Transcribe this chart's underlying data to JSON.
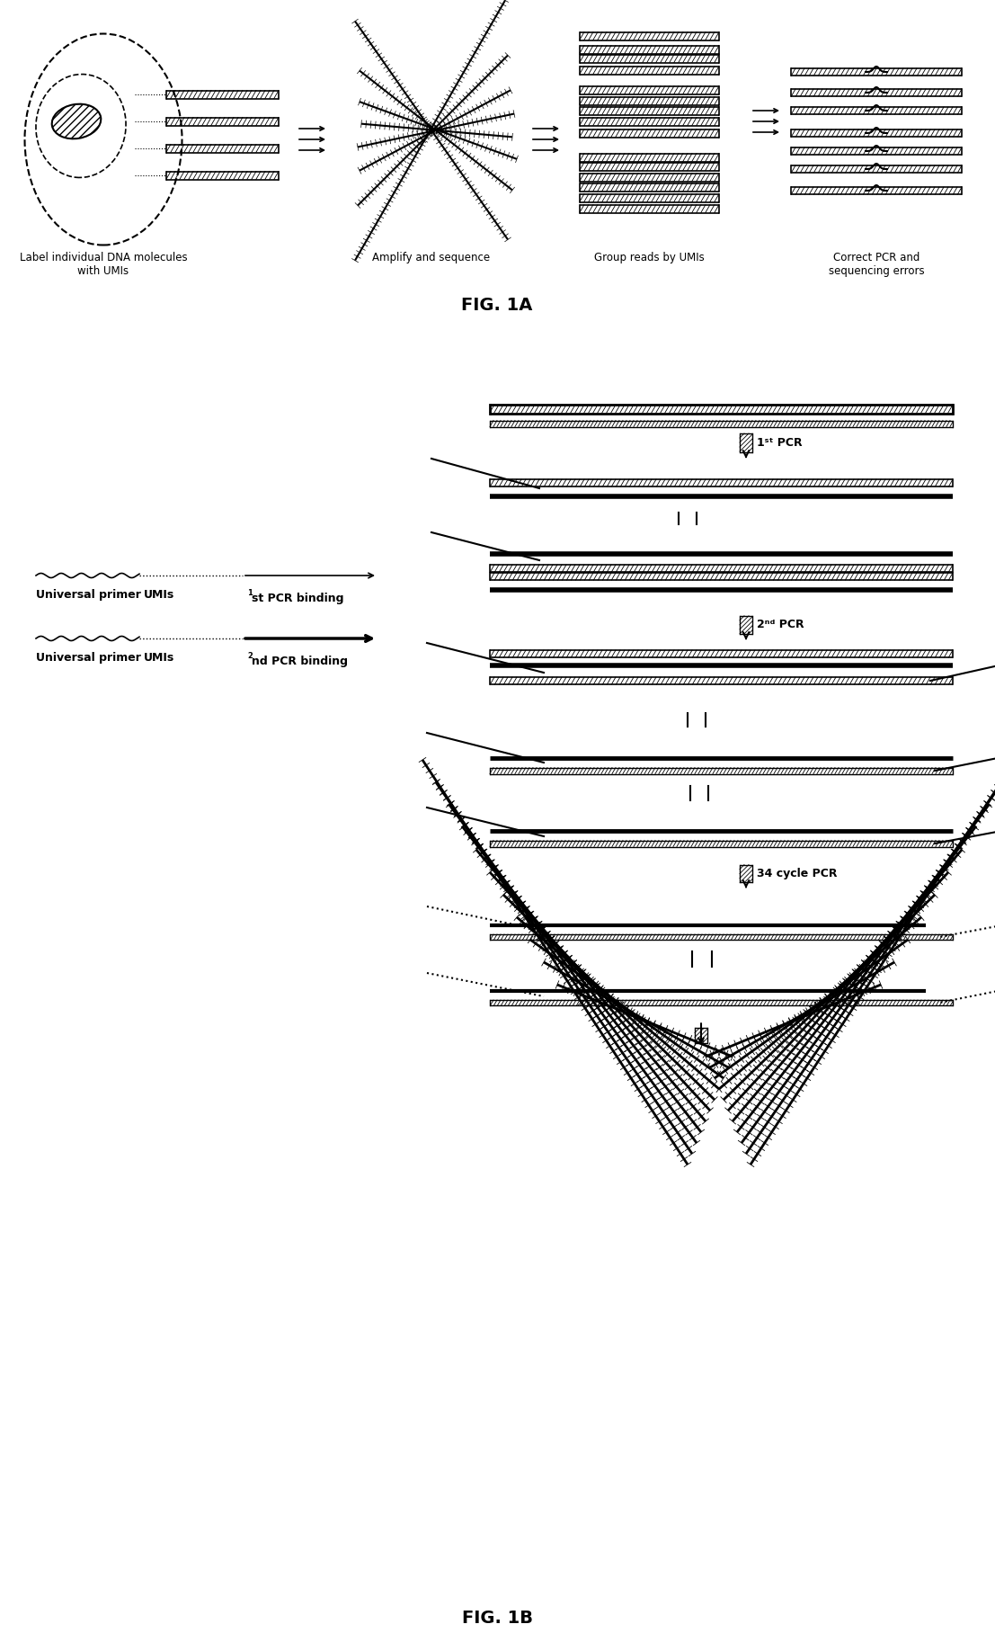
{
  "fig_width": 11.07,
  "fig_height": 18.36,
  "bg_color": "#ffffff",
  "fig1a_label": "FIG. 1A",
  "fig1b_label": "FIG. 1B",
  "label1": "Label individual DNA molecules\nwith UMIs",
  "label2": "Amplify and sequence",
  "label3": "Group reads by UMIs",
  "label4": "Correct PCR and\nsequencing errors",
  "legend1": "Universal primer",
  "legend2": "UMIs",
  "legend3a": "1ˢᵗ PCR binding",
  "legend3b": "2ⁿᵈ PCR binding",
  "pcr1_label": "1ˢᵗ PCR",
  "pcr2_label": "2ⁿᵈ PCR",
  "pcr3_label": "34 cycle PCR"
}
